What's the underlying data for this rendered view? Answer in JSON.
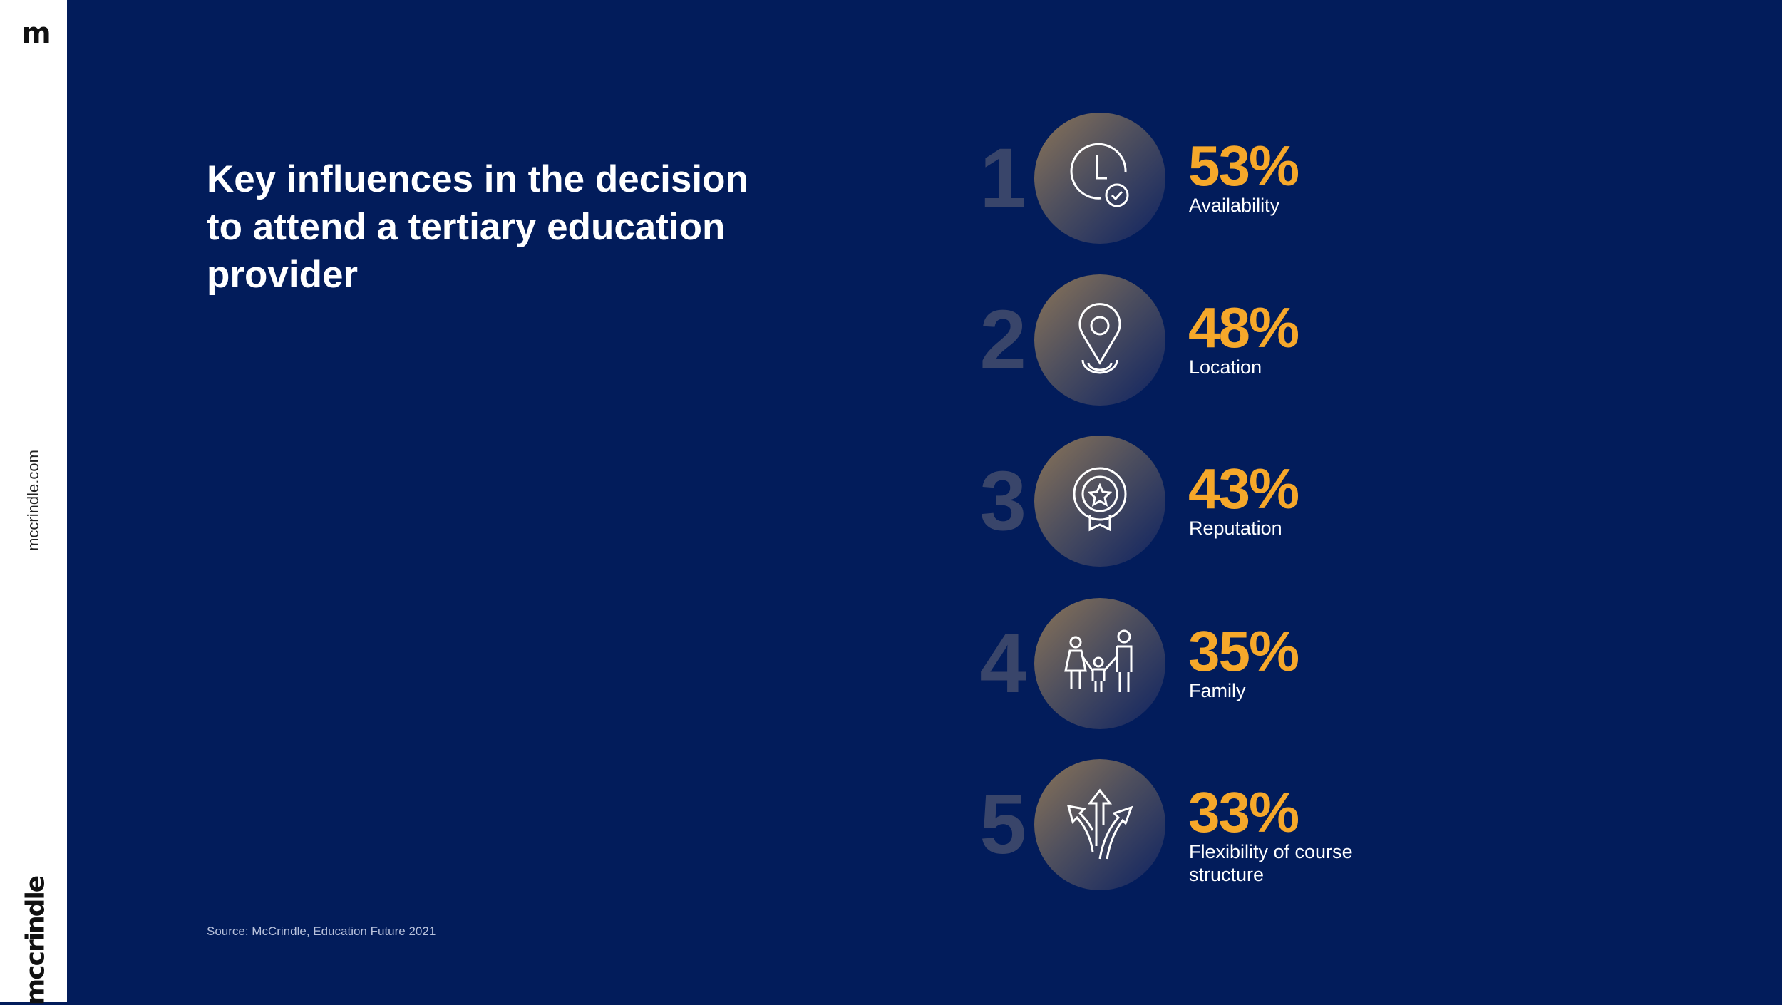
{
  "sidebar": {
    "logo_mark": "m",
    "website": "mccrindle.com",
    "brand": "mccrindle"
  },
  "title": "Key influences in the decision to attend a tertiary education provider",
  "source": "Source: McCrindle, Education Future 2021",
  "colors": {
    "background": "#021c5b",
    "accent": "#f6a82a",
    "rank": "#39456a"
  },
  "items": [
    {
      "rank": "1",
      "percent": "53%",
      "label": "Availability",
      "icon": "clock-check-icon"
    },
    {
      "rank": "2",
      "percent": "48%",
      "label": "Location",
      "icon": "location-pin-icon"
    },
    {
      "rank": "3",
      "percent": "43%",
      "label": "Reputation",
      "icon": "award-badge-icon"
    },
    {
      "rank": "4",
      "percent": "35%",
      "label": "Family",
      "icon": "family-icon"
    },
    {
      "rank": "5",
      "percent": "33%",
      "label": "Flexibility of course structure",
      "icon": "diverging-arrows-icon"
    }
  ]
}
